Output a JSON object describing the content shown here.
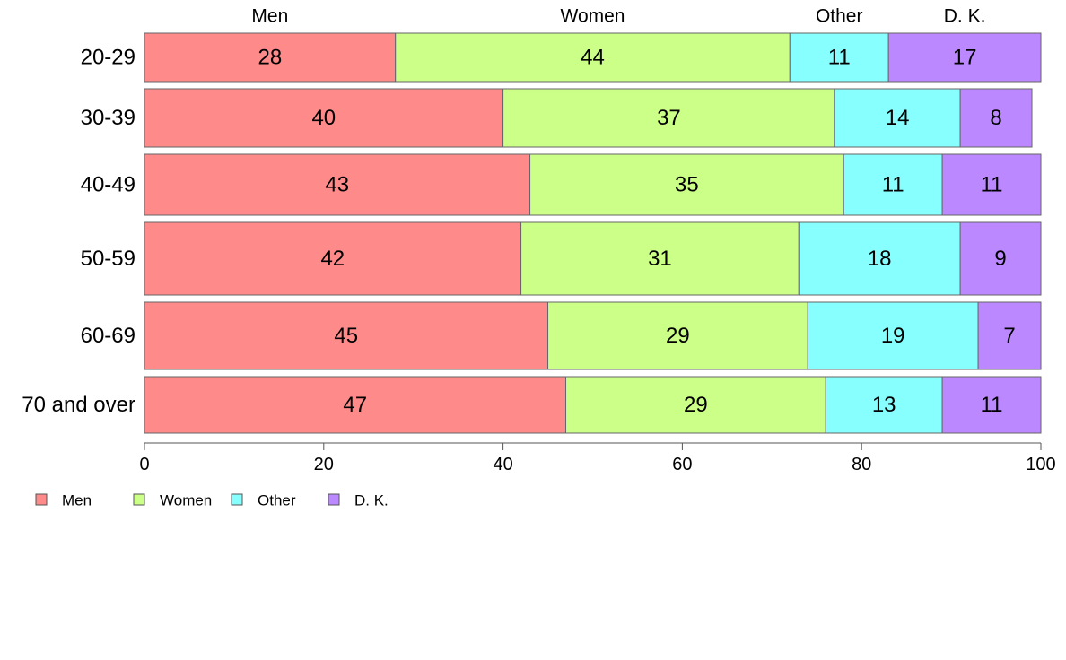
{
  "chart_data": {
    "type": "bar",
    "orientation": "horizontal",
    "stacked": true,
    "categories": [
      "20-29",
      "30-39",
      "40-49",
      "50-59",
      "60-69",
      "70 and over"
    ],
    "series": [
      {
        "name": "Men",
        "color": "#FF8A8A",
        "values": [
          28,
          40,
          43,
          42,
          45,
          47
        ]
      },
      {
        "name": "Women",
        "color": "#CCFF88",
        "values": [
          44,
          37,
          35,
          31,
          29,
          29
        ]
      },
      {
        "name": "Other",
        "color": "#88FFFF",
        "values": [
          11,
          14,
          11,
          18,
          19,
          13
        ]
      },
      {
        "name": "D. K.",
        "color": "#BB88FF",
        "values": [
          17,
          8,
          11,
          9,
          7,
          11
        ]
      }
    ],
    "top_labels": [
      "Men",
      "Women",
      "Other",
      "D. K."
    ],
    "x_ticks": [
      0,
      20,
      40,
      60,
      80,
      100
    ],
    "xlim": [
      0,
      100
    ],
    "grid": false,
    "legend_position": "bottom-left"
  }
}
